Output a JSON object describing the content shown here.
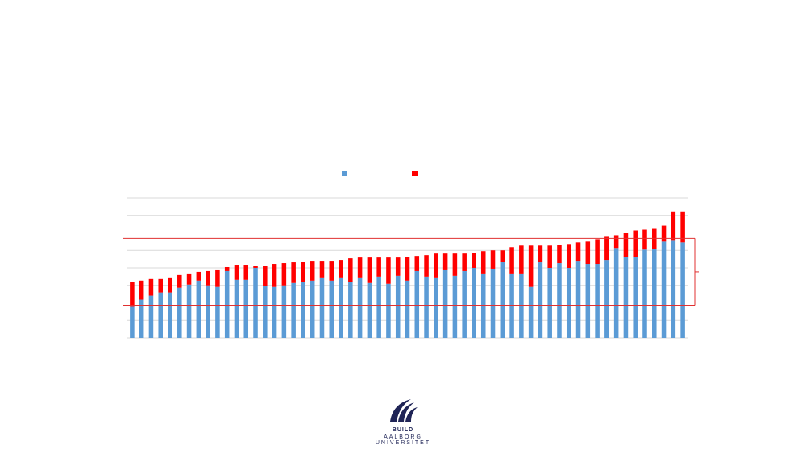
{
  "chart_data": {
    "type": "bar",
    "stacked": true,
    "title": "",
    "xlabel": "",
    "ylabel": "",
    "grid": true,
    "legend_placement": "top",
    "series": [
      {
        "name": "",
        "color": "#5b9bd5",
        "values": [
          40,
          48,
          53,
          57,
          57,
          63,
          67,
          72,
          66,
          64,
          84,
          73,
          73,
          88,
          65,
          64,
          66,
          69,
          70,
          72,
          76,
          72,
          76,
          70,
          76,
          69,
          77,
          68,
          78,
          72,
          84,
          77,
          76,
          86,
          78,
          84,
          88,
          81,
          87,
          96,
          81,
          81,
          64,
          95,
          88,
          94,
          88,
          97,
          93,
          93,
          98,
          113,
          102,
          102,
          111,
          112,
          121,
          123,
          120
        ]
      },
      {
        "name": "",
        "color": "#ff0000",
        "values": [
          30,
          24,
          21,
          17,
          19,
          16,
          14,
          11,
          18,
          22,
          5,
          19,
          19,
          3,
          26,
          29,
          28,
          26,
          26,
          25,
          21,
          25,
          22,
          30,
          25,
          32,
          24,
          33,
          23,
          30,
          19,
          27,
          30,
          20,
          28,
          22,
          19,
          28,
          23,
          14,
          33,
          35,
          52,
          21,
          28,
          23,
          30,
          23,
          28,
          31,
          30,
          16,
          30,
          33,
          25,
          26,
          20,
          36,
          39
        ]
      }
    ],
    "ylim": [
      0,
      180
    ],
    "gridlines": [
      0,
      22,
      44,
      66,
      88,
      110,
      132,
      154,
      176
    ]
  },
  "logo": {
    "line1": "BUILD",
    "line2": "AALBORG UNIVERSITET"
  }
}
